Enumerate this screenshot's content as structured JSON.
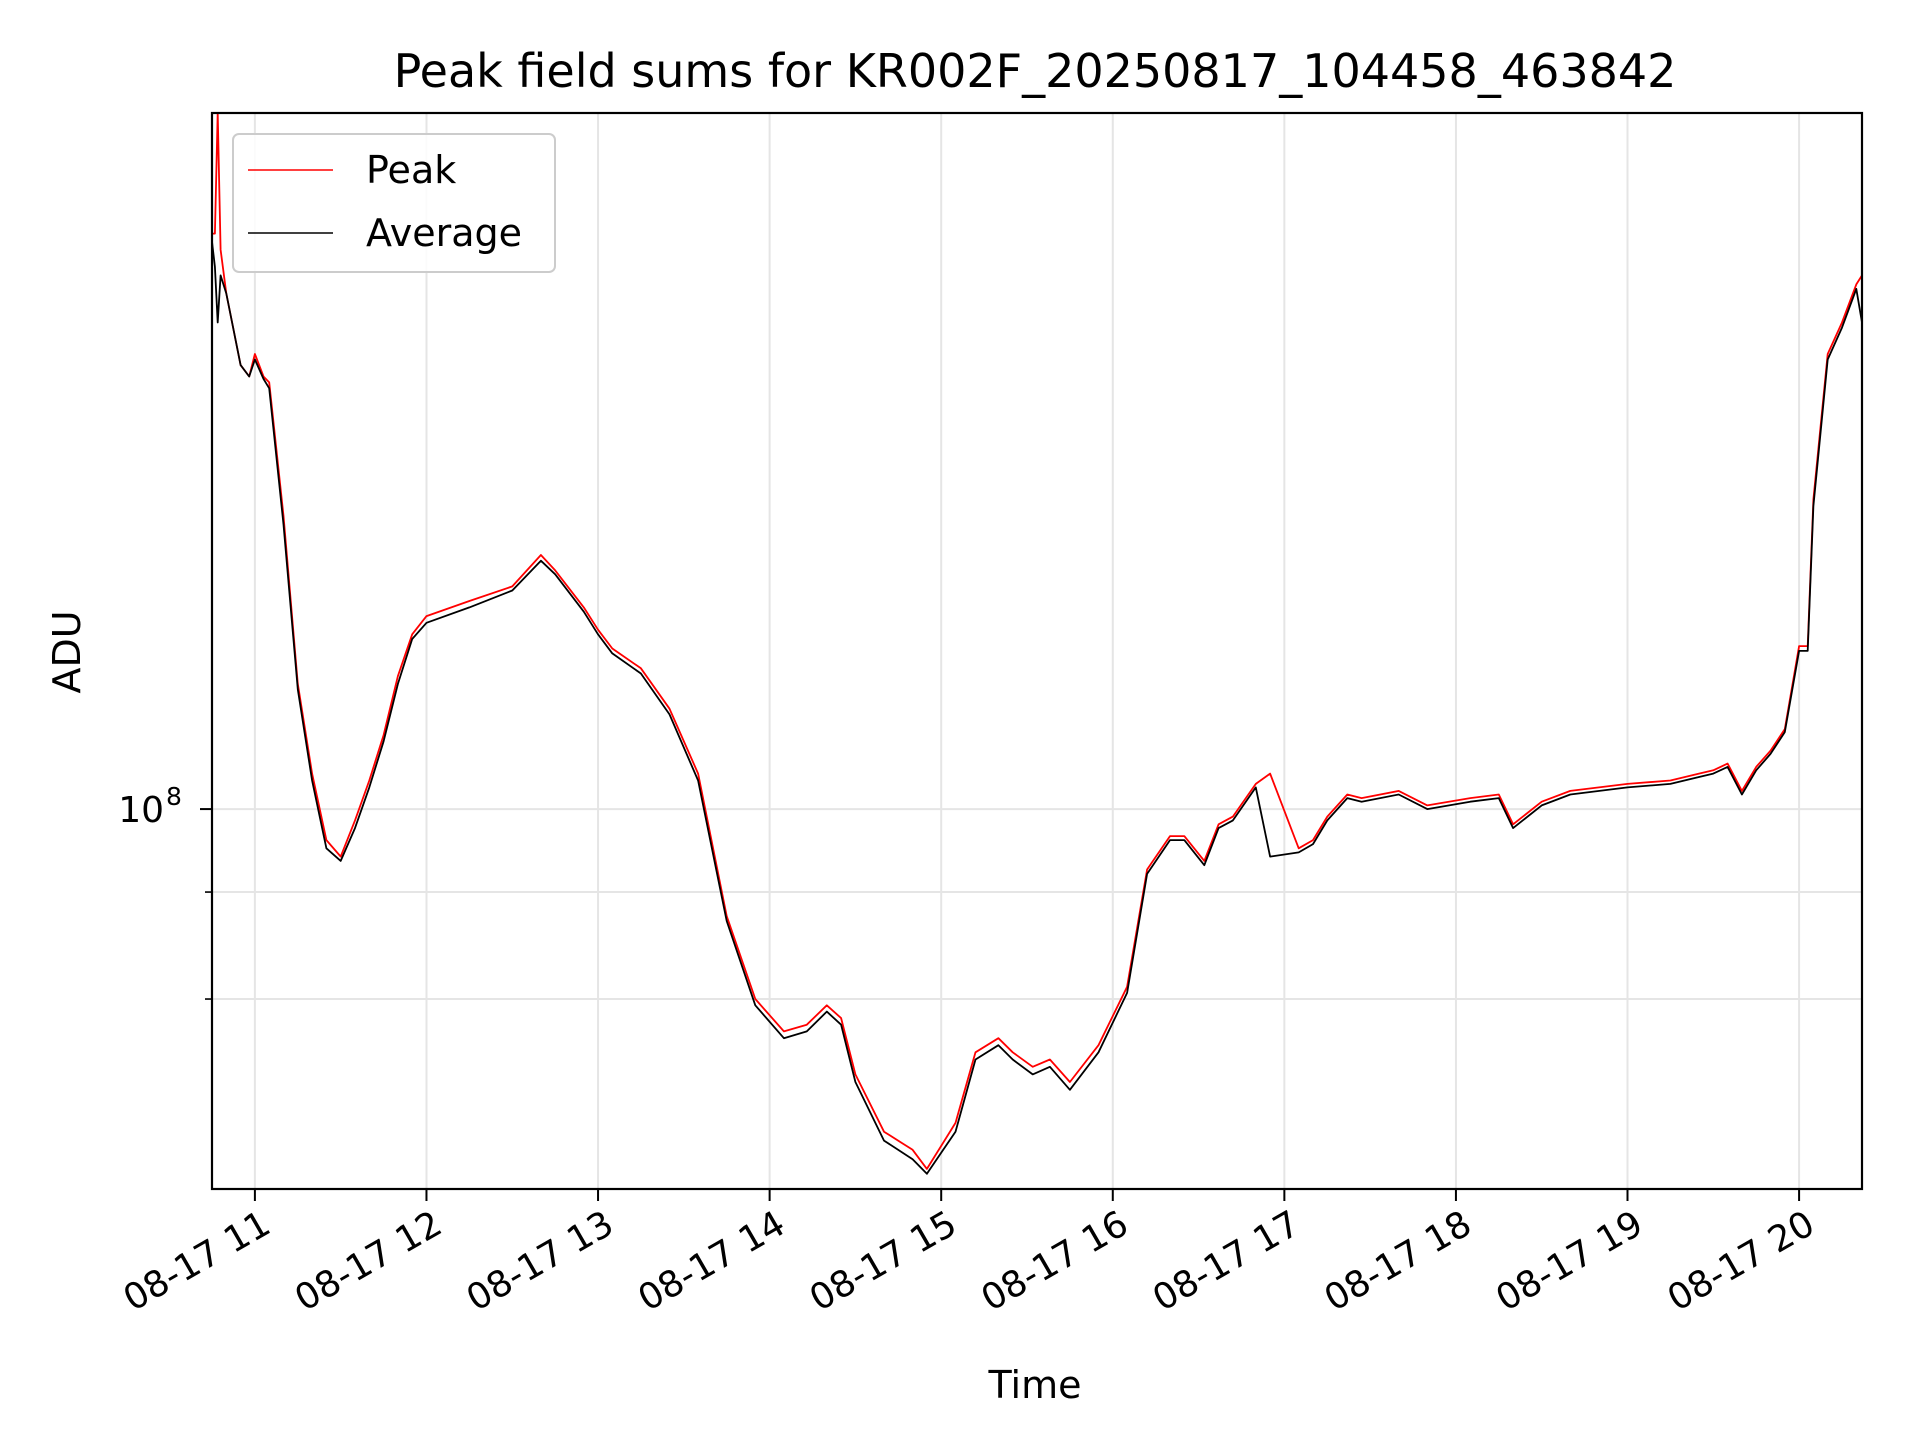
{
  "chart_data": {
    "type": "line",
    "title": "Peak field sums for KR002F_20250817_104458_463842",
    "xlabel": "Time",
    "ylabel": "ADU",
    "y_scale": "log",
    "ylim": [
      36000000,
      650000000
    ],
    "xlim": [
      "2025-08-17 10:45",
      "2025-08-17 20:22"
    ],
    "grid": true,
    "legend_position": "top-left",
    "x_ticks": [
      {
        "x": "2025-08-17 11:00",
        "label": "08-17 11"
      },
      {
        "x": "2025-08-17 12:00",
        "label": "08-17 12"
      },
      {
        "x": "2025-08-17 13:00",
        "label": "08-17 13"
      },
      {
        "x": "2025-08-17 14:00",
        "label": "08-17 14"
      },
      {
        "x": "2025-08-17 15:00",
        "label": "08-17 15"
      },
      {
        "x": "2025-08-17 16:00",
        "label": "08-17 16"
      },
      {
        "x": "2025-08-17 17:00",
        "label": "08-17 17"
      },
      {
        "x": "2025-08-17 18:00",
        "label": "08-17 18"
      },
      {
        "x": "2025-08-17 19:00",
        "label": "08-17 19"
      },
      {
        "x": "2025-08-17 20:00",
        "label": "08-17 20"
      }
    ],
    "y_major_ticks": [
      {
        "y": 100000000,
        "label_base": "10",
        "label_exp": "8"
      }
    ],
    "y_minor_ticks": [
      60000000,
      80000000
    ],
    "x": [
      "2025-08-17 10:45",
      "2025-08-17 10:46",
      "2025-08-17 10:47",
      "2025-08-17 10:48",
      "2025-08-17 10:50",
      "2025-08-17 10:55",
      "2025-08-17 10:58",
      "2025-08-17 11:00",
      "2025-08-17 11:03",
      "2025-08-17 11:05",
      "2025-08-17 11:10",
      "2025-08-17 11:15",
      "2025-08-17 11:20",
      "2025-08-17 11:25",
      "2025-08-17 11:30",
      "2025-08-17 11:35",
      "2025-08-17 11:40",
      "2025-08-17 11:45",
      "2025-08-17 11:50",
      "2025-08-17 11:55",
      "2025-08-17 12:00",
      "2025-08-17 12:15",
      "2025-08-17 12:30",
      "2025-08-17 12:40",
      "2025-08-17 12:45",
      "2025-08-17 12:55",
      "2025-08-17 13:00",
      "2025-08-17 13:05",
      "2025-08-17 13:15",
      "2025-08-17 13:25",
      "2025-08-17 13:35",
      "2025-08-17 13:45",
      "2025-08-17 13:55",
      "2025-08-17 14:05",
      "2025-08-17 14:13",
      "2025-08-17 14:20",
      "2025-08-17 14:25",
      "2025-08-17 14:30",
      "2025-08-17 14:40",
      "2025-08-17 14:50",
      "2025-08-17 14:55",
      "2025-08-17 15:05",
      "2025-08-17 15:12",
      "2025-08-17 15:20",
      "2025-08-17 15:25",
      "2025-08-17 15:32",
      "2025-08-17 15:38",
      "2025-08-17 15:45",
      "2025-08-17 15:55",
      "2025-08-17 16:05",
      "2025-08-17 16:12",
      "2025-08-17 16:20",
      "2025-08-17 16:25",
      "2025-08-17 16:32",
      "2025-08-17 16:37",
      "2025-08-17 16:42",
      "2025-08-17 16:50",
      "2025-08-17 16:55",
      "2025-08-17 17:05",
      "2025-08-17 17:10",
      "2025-08-17 17:15",
      "2025-08-17 17:22",
      "2025-08-17 17:27",
      "2025-08-17 17:40",
      "2025-08-17 17:50",
      "2025-08-17 18:05",
      "2025-08-17 18:15",
      "2025-08-17 18:20",
      "2025-08-17 18:30",
      "2025-08-17 18:40",
      "2025-08-17 19:00",
      "2025-08-17 19:15",
      "2025-08-17 19:25",
      "2025-08-17 19:30",
      "2025-08-17 19:35",
      "2025-08-17 19:40",
      "2025-08-17 19:45",
      "2025-08-17 19:50",
      "2025-08-17 19:55",
      "2025-08-17 20:00",
      "2025-08-17 20:03",
      "2025-08-17 20:05",
      "2025-08-17 20:10",
      "2025-08-17 20:15",
      "2025-08-17 20:20",
      "2025-08-17 20:22"
    ],
    "series": [
      {
        "name": "Peak",
        "color": "#ff0000",
        "values": [
          470000000,
          470000000,
          650000000,
          450000000,
          400000000,
          330000000,
          320000000,
          340000000,
          320000000,
          315000000,
          220000000,
          140000000,
          110000000,
          92000000,
          88000000,
          97000000,
          108000000,
          122000000,
          143000000,
          160000000,
          168000000,
          175000000,
          182000000,
          198000000,
          190000000,
          172000000,
          162000000,
          154000000,
          146000000,
          131000000,
          110000000,
          75000000,
          60000000,
          55000000,
          56000000,
          59000000,
          57000000,
          49000000,
          42000000,
          40000000,
          38000000,
          43000000,
          52000000,
          54000000,
          52000000,
          50000000,
          51000000,
          48000000,
          53000000,
          62000000,
          85000000,
          93000000,
          93000000,
          87000000,
          96000000,
          98000000,
          107000000,
          110000000,
          90000000,
          92000000,
          98000000,
          104000000,
          103000000,
          105000000,
          101000000,
          103000000,
          104000000,
          96000000,
          102000000,
          105000000,
          107000000,
          108000000,
          110000000,
          111000000,
          113000000,
          105000000,
          112000000,
          117000000,
          124000000,
          155000000,
          155000000,
          230000000,
          340000000,
          370000000,
          410000000,
          420000000
        ]
      },
      {
        "name": "Average",
        "color": "#000000",
        "values": [
          460000000,
          430000000,
          370000000,
          420000000,
          400000000,
          330000000,
          320000000,
          335000000,
          318000000,
          310000000,
          215000000,
          138000000,
          108000000,
          90000000,
          87000000,
          95000000,
          106000000,
          120000000,
          140000000,
          158000000,
          165000000,
          172000000,
          180000000,
          195000000,
          188000000,
          170000000,
          160000000,
          152000000,
          144000000,
          129000000,
          108000000,
          74000000,
          59000000,
          54000000,
          55000000,
          58000000,
          56000000,
          48000000,
          41000000,
          39000000,
          37500000,
          42000000,
          51000000,
          53000000,
          51000000,
          49000000,
          50000000,
          47000000,
          52000000,
          61000000,
          84000000,
          92000000,
          92000000,
          86000000,
          95000000,
          97000000,
          106000000,
          88000000,
          89000000,
          91000000,
          97000000,
          103000000,
          102000000,
          104000000,
          100000000,
          102000000,
          103000000,
          95000000,
          101000000,
          104000000,
          106000000,
          107000000,
          109000000,
          110000000,
          112000000,
          104000000,
          111000000,
          116000000,
          123000000,
          153000000,
          153000000,
          226000000,
          335000000,
          365000000,
          405000000,
          370000000
        ]
      }
    ]
  }
}
